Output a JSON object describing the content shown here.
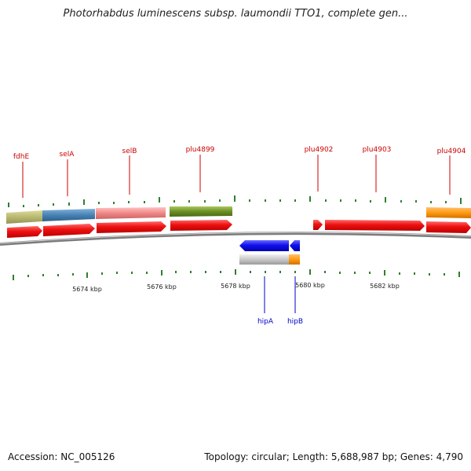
{
  "title": "Photorhabdus luminescens subsp. laumondii TTO1, complete gen...",
  "footer": {
    "accession": "Accession: NC_005126",
    "summary": "Topology: circular; Length: 5,688,987 bp; Genes: 4,790"
  },
  "colors": {
    "top_strand_label": "#cc0000",
    "bottom_strand_label": "#0000cc",
    "tick": "#2f7f2f",
    "chromosome": "#777777",
    "cds": "#ee1111",
    "cds_reverse": "#1111ee"
  },
  "genes_top": [
    {
      "name": "fdhE"
    },
    {
      "name": "selA"
    },
    {
      "name": "selB"
    },
    {
      "name": "plu4899"
    },
    {
      "name": "plu4902"
    },
    {
      "name": "plu4903"
    },
    {
      "name": "plu4904"
    }
  ],
  "genes_bottom": [
    {
      "name": "hipA"
    },
    {
      "name": "hipB"
    }
  ],
  "kbp_labels": [
    "5674 kbp",
    "5676 kbp",
    "5678 kbp",
    "5680 kbp",
    "5682 kbp"
  ]
}
